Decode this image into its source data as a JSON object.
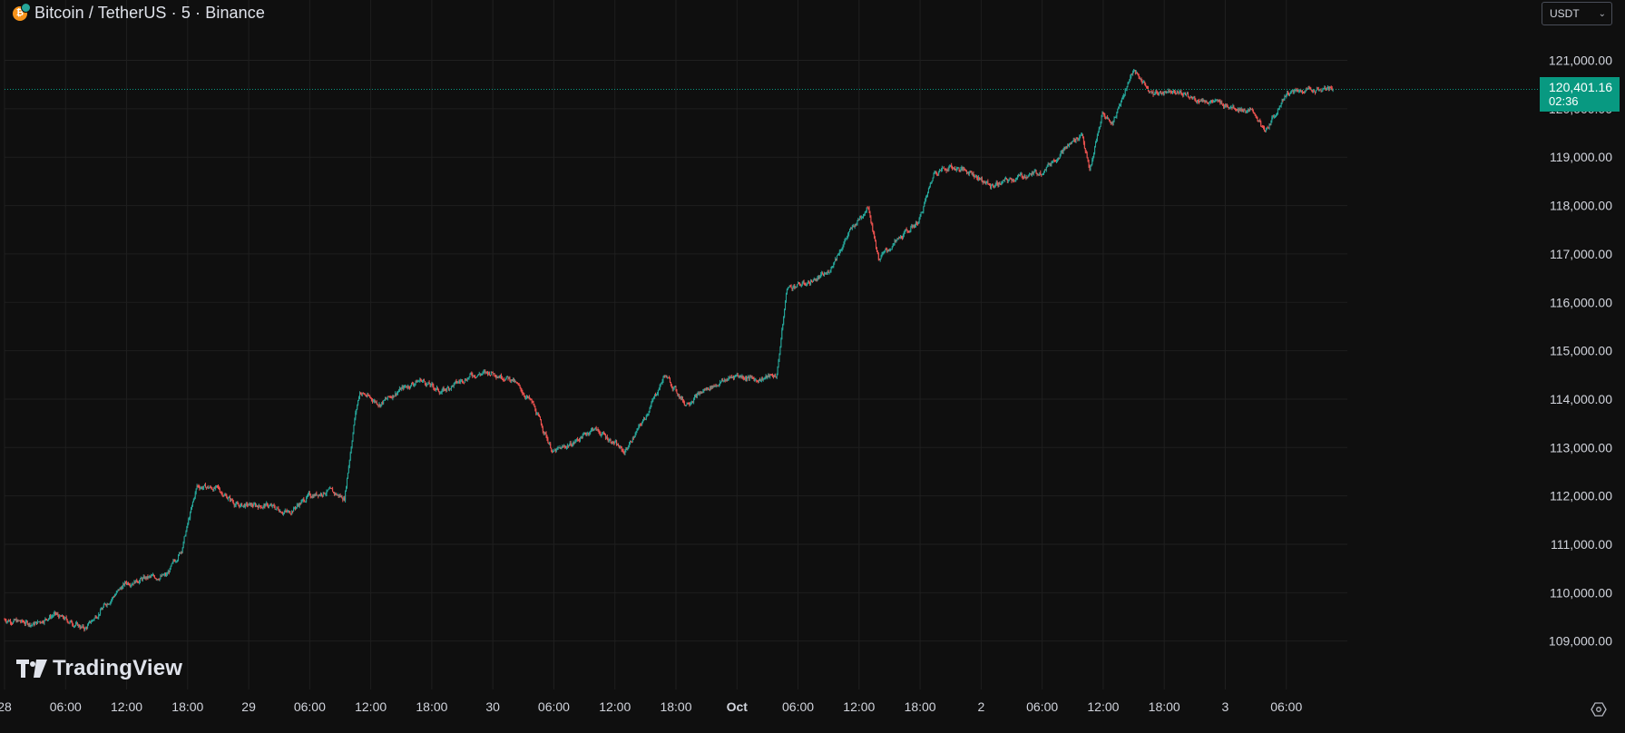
{
  "header": {
    "title": "Bitcoin / TetherUS · 5 · Binance",
    "coin_icon": "bitcoin-icon"
  },
  "currency_selector": {
    "value": "USDT"
  },
  "last_price": {
    "value": "120,401.16",
    "countdown": "02:36"
  },
  "logo": {
    "text": "TradingView"
  },
  "colors": {
    "background": "#0f0f0f",
    "grid": "#1f1f1f",
    "up": "#26a69a",
    "down": "#ef5350",
    "price_line": "#089981",
    "axis_text": "#d1d4dc"
  },
  "chart_data": {
    "type": "candlestick",
    "symbol": "BTCUSDT",
    "interval": "5",
    "exchange": "Binance",
    "ylim": [
      108000,
      121600
    ],
    "y_ticks": [
      "121,000.00",
      "120,000.00",
      "119,000.00",
      "118,000.00",
      "117,000.00",
      "116,000.00",
      "115,000.00",
      "114,000.00",
      "113,000.00",
      "112,000.00",
      "111,000.00",
      "110,000.00",
      "109,000.00"
    ],
    "y_tick_values": [
      121000,
      120000,
      119000,
      118000,
      117000,
      116000,
      115000,
      114000,
      113000,
      112000,
      111000,
      110000,
      109000
    ],
    "x_ticks": [
      "28",
      "06:00",
      "12:00",
      "18:00",
      "29",
      "06:00",
      "12:00",
      "18:00",
      "30",
      "06:00",
      "12:00",
      "18:00",
      "Oct",
      "06:00",
      "12:00",
      "18:00",
      "2",
      "06:00",
      "12:00",
      "18:00",
      "3",
      "06:00"
    ],
    "x_bold_ticks": [
      "Oct"
    ],
    "x_start": "2025-09-28 00:00",
    "x_end": "2025-10-03 10:35",
    "last_price": 120401.16,
    "price_path": [
      [
        "2025-09-28 00:00",
        109450
      ],
      [
        "2025-09-28 03:00",
        109350
      ],
      [
        "2025-09-28 05:00",
        109550
      ],
      [
        "2025-09-28 08:00",
        109250
      ],
      [
        "2025-09-28 10:00",
        109750
      ],
      [
        "2025-09-28 12:00",
        110200
      ],
      [
        "2025-09-28 14:00",
        110300
      ],
      [
        "2025-09-28 16:00",
        110350
      ],
      [
        "2025-09-28 17:30",
        110900
      ],
      [
        "2025-09-28 19:00",
        112200
      ],
      [
        "2025-09-28 21:00",
        112150
      ],
      [
        "2025-09-28 23:00",
        111800
      ],
      [
        "2025-09-29 02:00",
        111800
      ],
      [
        "2025-09-29 04:00",
        111650
      ],
      [
        "2025-09-29 06:00",
        112000
      ],
      [
        "2025-09-29 08:00",
        112100
      ],
      [
        "2025-09-29 09:30",
        111950
      ],
      [
        "2025-09-29 10:30",
        113600
      ],
      [
        "2025-09-29 11:00",
        114150
      ],
      [
        "2025-09-29 13:00",
        113900
      ],
      [
        "2025-09-29 15:00",
        114200
      ],
      [
        "2025-09-29 17:00",
        114400
      ],
      [
        "2025-09-29 19:00",
        114150
      ],
      [
        "2025-09-29 22:00",
        114500
      ],
      [
        "2025-09-30 00:00",
        114550
      ],
      [
        "2025-09-30 02:00",
        114400
      ],
      [
        "2025-09-30 04:00",
        113900
      ],
      [
        "2025-09-30 06:00",
        112900
      ],
      [
        "2025-09-30 08:00",
        113100
      ],
      [
        "2025-09-30 10:00",
        113400
      ],
      [
        "2025-09-30 12:00",
        113100
      ],
      [
        "2025-09-30 13:00",
        112900
      ],
      [
        "2025-09-30 15:00",
        113600
      ],
      [
        "2025-09-30 17:00",
        114500
      ],
      [
        "2025-09-30 19:00",
        113900
      ],
      [
        "2025-09-30 21:00",
        114200
      ],
      [
        "2025-10-01 00:00",
        114500
      ],
      [
        "2025-10-01 02:00",
        114400
      ],
      [
        "2025-10-01 04:00",
        114500
      ],
      [
        "2025-10-01 05:00",
        116300
      ],
      [
        "2025-10-01 07:00",
        116400
      ],
      [
        "2025-10-01 09:00",
        116600
      ],
      [
        "2025-10-01 11:00",
        117400
      ],
      [
        "2025-10-01 13:00",
        118000
      ],
      [
        "2025-10-01 14:00",
        116900
      ],
      [
        "2025-10-01 16:00",
        117300
      ],
      [
        "2025-10-01 18:00",
        117700
      ],
      [
        "2025-10-01 19:30",
        118700
      ],
      [
        "2025-10-01 21:00",
        118800
      ],
      [
        "2025-10-01 23:00",
        118700
      ],
      [
        "2025-10-02 01:00",
        118400
      ],
      [
        "2025-10-02 04:00",
        118600
      ],
      [
        "2025-10-02 06:00",
        118700
      ],
      [
        "2025-10-02 08:00",
        119100
      ],
      [
        "2025-10-02 10:00",
        119500
      ],
      [
        "2025-10-02 10:45",
        118700
      ],
      [
        "2025-10-02 12:00",
        119900
      ],
      [
        "2025-10-02 13:00",
        119700
      ],
      [
        "2025-10-02 15:00",
        120800
      ],
      [
        "2025-10-02 17:00",
        120300
      ],
      [
        "2025-10-02 19:00",
        120400
      ],
      [
        "2025-10-02 21:00",
        120200
      ],
      [
        "2025-10-03 00:00",
        120100
      ],
      [
        "2025-10-03 03:00",
        119900
      ],
      [
        "2025-10-03 04:00",
        119500
      ],
      [
        "2025-10-03 06:00",
        120300
      ],
      [
        "2025-10-03 08:00",
        120400
      ],
      [
        "2025-10-03 10:35",
        120401
      ]
    ]
  }
}
